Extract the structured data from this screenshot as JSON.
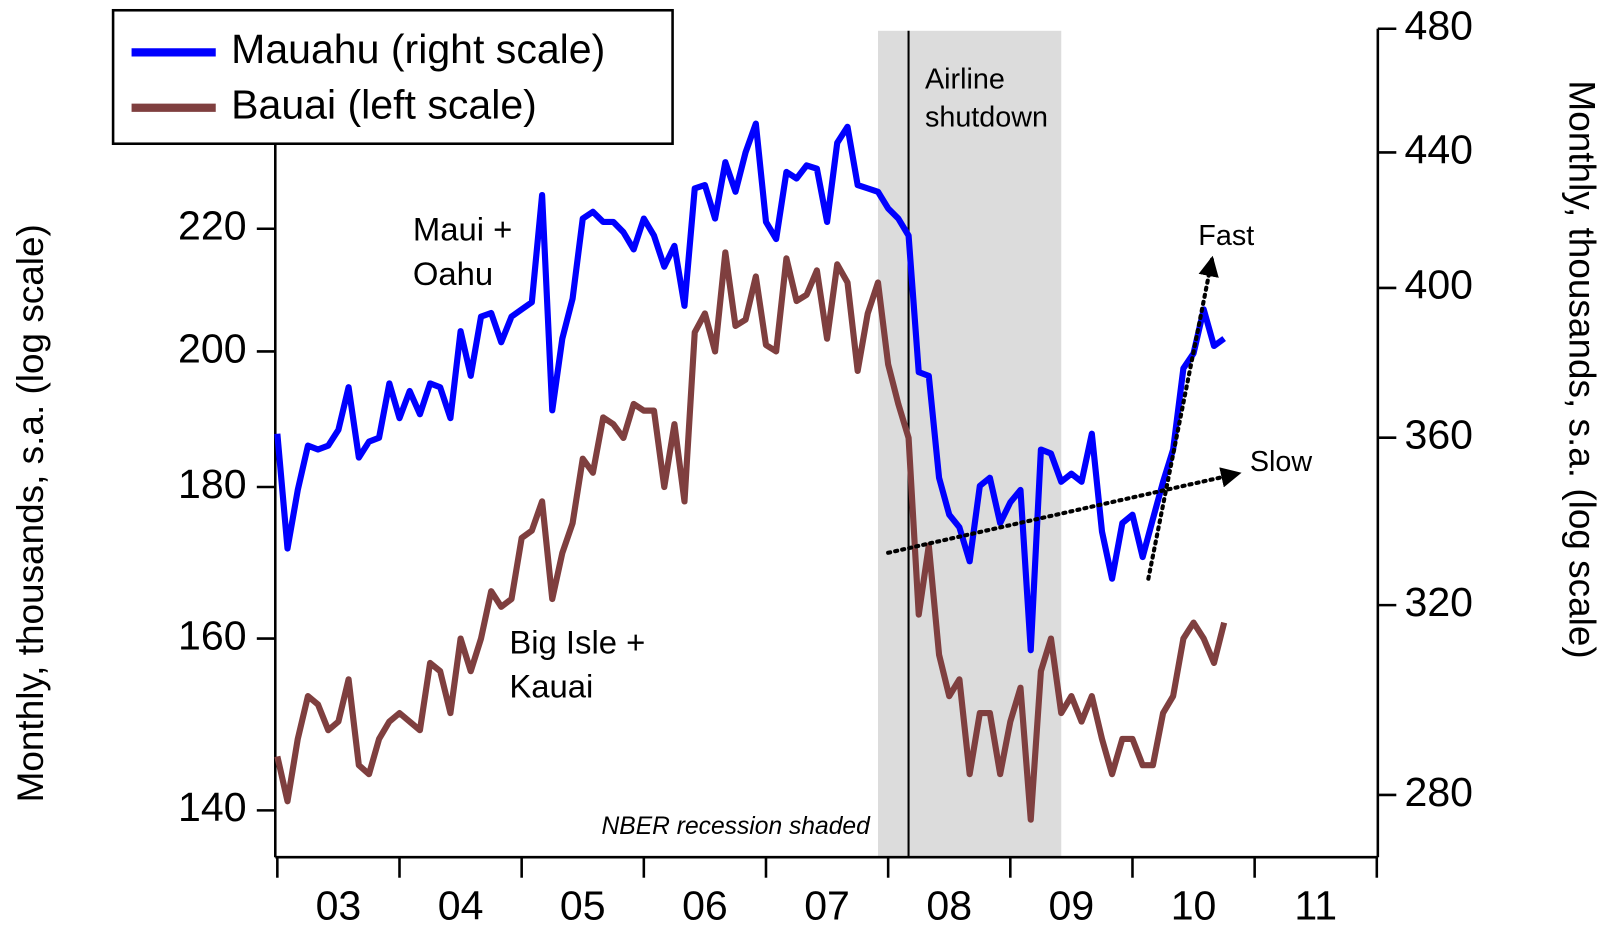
{
  "chart_data": {
    "type": "line",
    "y_label": "Monthly, thousands, s.a. (log scale)",
    "y2_label": "Monthly, thousands, s.a. (log scale)",
    "log_scale": true,
    "legend_position": "upper left",
    "x": [
      2003,
      2003.083,
      2003.167,
      2003.25,
      2003.333,
      2003.417,
      2003.5,
      2003.583,
      2003.667,
      2003.75,
      2003.833,
      2003.917,
      2004,
      2004.083,
      2004.167,
      2004.25,
      2004.333,
      2004.417,
      2004.5,
      2004.583,
      2004.667,
      2004.75,
      2004.833,
      2004.917,
      2005,
      2005.083,
      2005.167,
      2005.25,
      2005.333,
      2005.417,
      2005.5,
      2005.583,
      2005.667,
      2005.75,
      2005.833,
      2005.917,
      2006,
      2006.083,
      2006.167,
      2006.25,
      2006.333,
      2006.417,
      2006.5,
      2006.583,
      2006.667,
      2006.75,
      2006.833,
      2006.917,
      2007,
      2007.083,
      2007.167,
      2007.25,
      2007.333,
      2007.417,
      2007.5,
      2007.583,
      2007.667,
      2007.75,
      2007.833,
      2007.917,
      2008,
      2008.083,
      2008.167,
      2008.25,
      2008.333,
      2008.417,
      2008.5,
      2008.583,
      2008.667,
      2008.75,
      2008.833,
      2008.917,
      2009,
      2009.083,
      2009.167,
      2009.25,
      2009.333,
      2009.417,
      2009.5,
      2009.583,
      2009.667,
      2009.75,
      2009.833,
      2009.917,
      2010,
      2010.083,
      2010.167,
      2010.25,
      2010.333,
      2010.417,
      2010.5,
      2010.583,
      2010.667,
      2010.75
    ],
    "series": [
      {
        "name": "Mauahu (right scale)",
        "color": "#0000ff",
        "axis": "y2",
        "values": [
          361,
          333,
          347,
          358,
          357,
          358,
          362,
          373,
          355,
          359,
          360,
          374,
          365,
          372,
          366,
          374,
          373,
          365,
          388,
          376,
          392,
          393,
          385,
          392,
          394,
          396,
          427,
          367,
          386,
          397,
          420,
          422,
          419,
          419,
          416,
          411,
          420,
          415,
          406,
          412,
          395,
          429,
          430,
          420,
          437,
          428,
          440,
          449,
          419,
          414,
          434,
          432,
          436,
          435,
          419,
          443,
          448,
          430,
          429,
          428,
          423,
          420,
          415,
          377,
          376,
          350,
          341,
          338,
          330,
          348,
          350,
          339,
          344,
          347,
          310,
          357,
          356,
          349,
          351,
          349,
          361,
          337,
          326,
          339,
          341,
          331,
          340,
          349,
          357,
          378,
          382,
          394,
          384,
          386
        ]
      },
      {
        "name": "Bauai (left scale)",
        "color": "#7f3f3f",
        "values": [
          146,
          141,
          148,
          153,
          152,
          149,
          150,
          155,
          145,
          144,
          148,
          150,
          151,
          150,
          149,
          157,
          156,
          151,
          160,
          156,
          160,
          166,
          164,
          165,
          173,
          174,
          178,
          165,
          171,
          175,
          184,
          182,
          190,
          189,
          187,
          192,
          191,
          191,
          180,
          189,
          178,
          203,
          206,
          200,
          216,
          204,
          205,
          212,
          201,
          200,
          215,
          208,
          209,
          213,
          202,
          214,
          211,
          197,
          206,
          211,
          198,
          192,
          187,
          163,
          172,
          158,
          153,
          155,
          144,
          151,
          151,
          144,
          150,
          154,
          139,
          156,
          160,
          151,
          153,
          150,
          153,
          148,
          144,
          148,
          148,
          145,
          145,
          151,
          153,
          160,
          162,
          160,
          157,
          162
        ]
      }
    ],
    "xlim": [
      2003,
      2012
    ],
    "xticks": [
      2003,
      2004,
      2005,
      2006,
      2007,
      2008,
      2009,
      2010,
      2011,
      2012
    ],
    "xtick_labels": [
      {
        "value": 2003.5,
        "label": "03"
      },
      {
        "value": 2004.5,
        "label": "04"
      },
      {
        "value": 2005.5,
        "label": "05"
      },
      {
        "value": 2006.5,
        "label": "06"
      },
      {
        "value": 2007.5,
        "label": "07"
      },
      {
        "value": 2008.5,
        "label": "08"
      },
      {
        "value": 2009.5,
        "label": "09"
      },
      {
        "value": 2010.5,
        "label": "10"
      },
      {
        "value": 2011.5,
        "label": "11"
      }
    ],
    "ylim": [
      135,
      257
    ],
    "yticks": [
      140,
      160,
      180,
      200,
      220
    ],
    "y2lim": [
      268,
      480
    ],
    "y2ticks": [
      280,
      320,
      360,
      400,
      440,
      480
    ],
    "recession": {
      "x": [
        2007.917,
        2009.417
      ],
      "color": "#dcdcdc",
      "label": "NBER recession shaded"
    },
    "event": {
      "x": 2008.167,
      "label": [
        "Airline",
        "shutdown"
      ]
    },
    "annotations": {
      "maui_oahu": [
        "Maui +",
        "Oahu"
      ],
      "big_isle_kauai": [
        "Big Isle +",
        "Kauai"
      ]
    },
    "trend_lines": [
      {
        "label": "Slow",
        "axis": "y2",
        "x": [
          2008.0,
          2010.86
        ],
        "values": [
          332,
          351
        ]
      },
      {
        "label": "Fast",
        "axis": "y2",
        "x": [
          2010.13,
          2010.65
        ],
        "values": [
          326,
          408
        ]
      }
    ]
  }
}
